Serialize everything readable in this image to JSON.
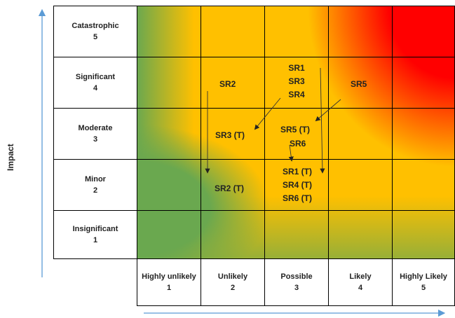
{
  "impact_axis": {
    "title": "Impact",
    "levels": [
      {
        "name": "Catastrophic",
        "score": "5"
      },
      {
        "name": "Significant",
        "score": "4"
      },
      {
        "name": "Moderate",
        "score": "3"
      },
      {
        "name": "Minor",
        "score": "2"
      },
      {
        "name": "Insignificant",
        "score": "1"
      }
    ]
  },
  "likelihood_axis": {
    "levels": [
      {
        "name": "Highly unlikely",
        "score": "1"
      },
      {
        "name": "Unlikely",
        "score": "2"
      },
      {
        "name": "Possible",
        "score": "3"
      },
      {
        "name": "Likely",
        "score": "4"
      },
      {
        "name": "Highly Likely",
        "score": "5"
      }
    ]
  },
  "colors": {
    "green": "#6aa84f",
    "amber": "#ffc000",
    "red": "#ff0000",
    "axis_arrow": "#5b9bd5",
    "grid_line": "#000000"
  },
  "risks": [
    {
      "id": "SR1",
      "impact": 4,
      "likelihood": 3
    },
    {
      "id": "SR2",
      "impact": 4,
      "likelihood": 2
    },
    {
      "id": "SR3",
      "impact": 4,
      "likelihood": 3
    },
    {
      "id": "SR4",
      "impact": 4,
      "likelihood": 3
    },
    {
      "id": "SR5",
      "impact": 4,
      "likelihood": 4
    },
    {
      "id": "SR3 (T)",
      "impact": 3,
      "likelihood": 2
    },
    {
      "id": "SR5 (T)",
      "impact": 3,
      "likelihood": 3
    },
    {
      "id": "SR6",
      "impact": 3,
      "likelihood": 3
    },
    {
      "id": "SR2 (T)",
      "impact": 2,
      "likelihood": 2
    },
    {
      "id": "SR1 (T)",
      "impact": 2,
      "likelihood": 3
    },
    {
      "id": "SR4 (T)",
      "impact": 2,
      "likelihood": 3
    },
    {
      "id": "SR6 (T)",
      "impact": 2,
      "likelihood": 3
    }
  ],
  "cells": {
    "r4c2": [
      "SR2"
    ],
    "r4c3": [
      "SR1",
      "SR3",
      "SR4"
    ],
    "r4c4": [
      "SR5"
    ],
    "r3c2": [
      "SR3 (T)"
    ],
    "r3c3a": [
      "SR5 (T)"
    ],
    "r3c3b": [
      "SR6"
    ],
    "r2c2": [
      "SR2 (T)"
    ],
    "r2c3": [
      "SR1 (T)",
      "SR4 (T)",
      "SR6 (T)"
    ]
  }
}
